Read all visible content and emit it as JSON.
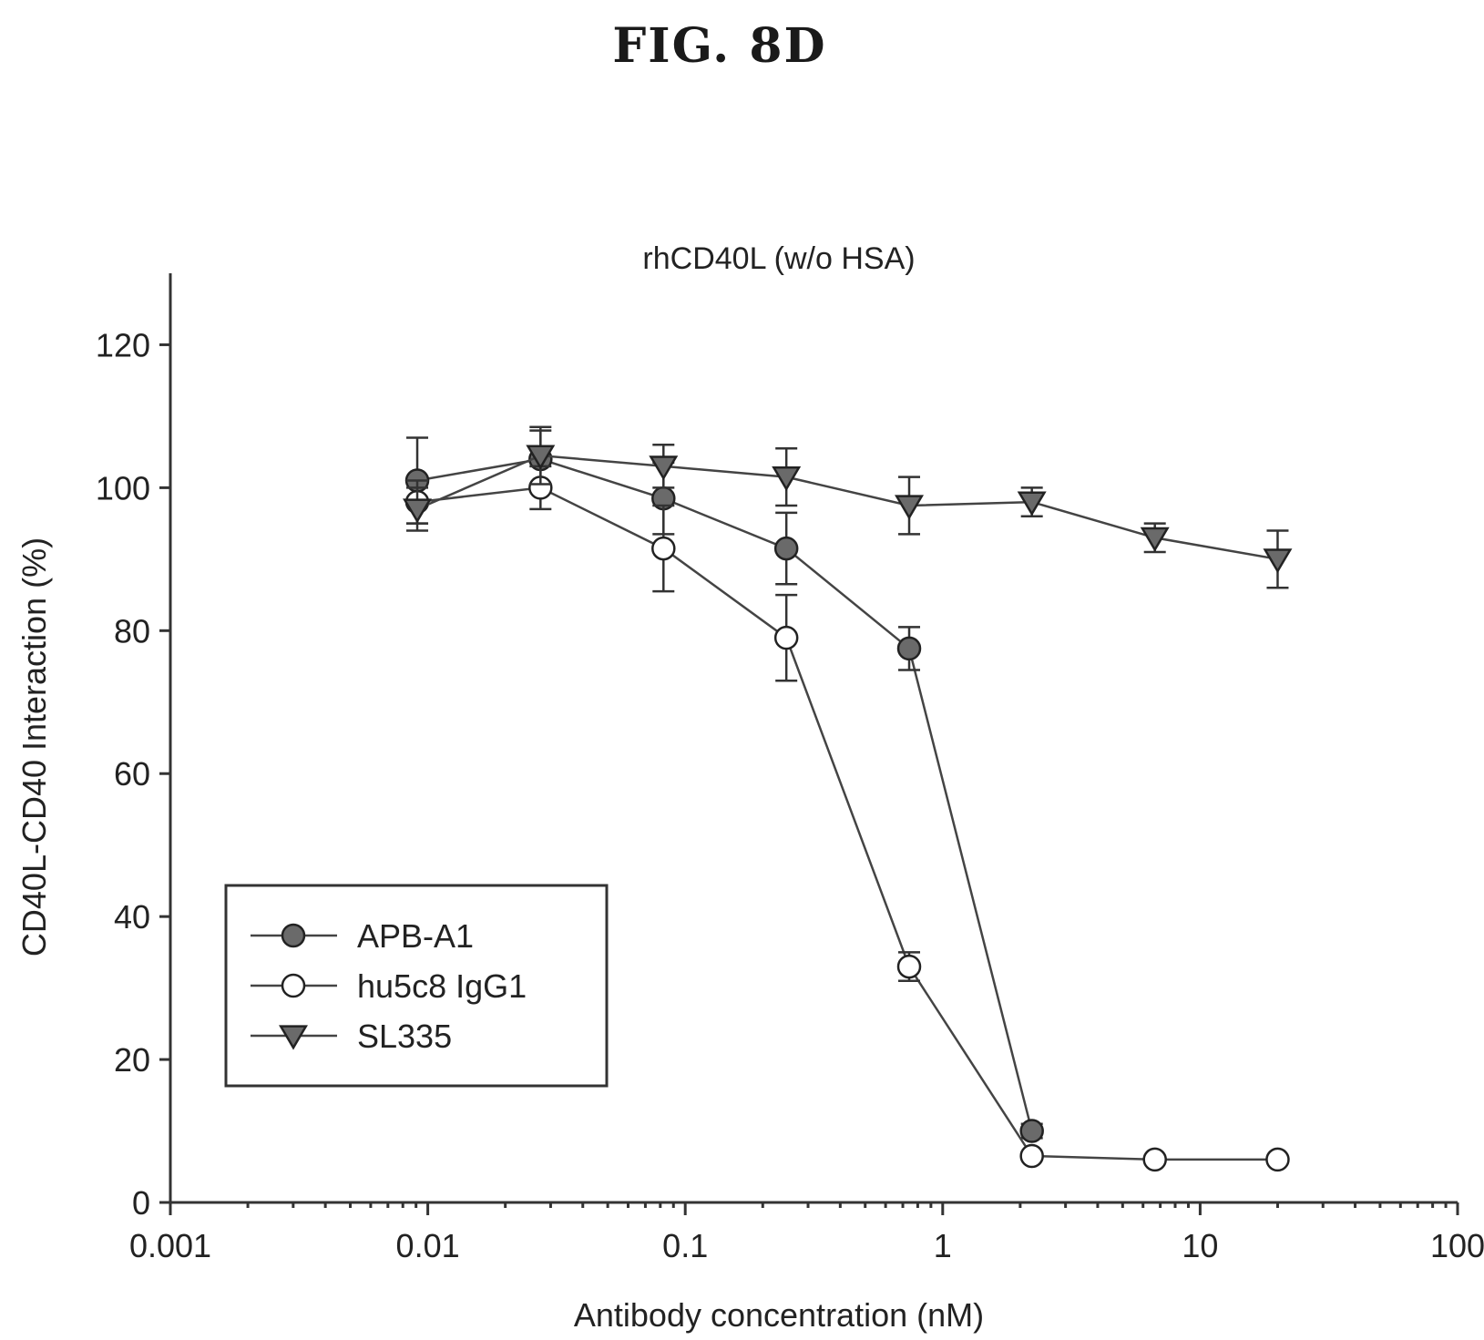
{
  "figure_label": "FIG.  8D",
  "chart_data": {
    "type": "scatter",
    "title": "rhCD40L (w/o HSA)",
    "xlabel": "Antibody concentration (nM)",
    "ylabel": "CD40L-CD40 Interaction (%)",
    "xscale": "log",
    "xlim": [
      0.001,
      100
    ],
    "ylim": [
      0,
      130
    ],
    "x_ticks": [
      0.001,
      0.01,
      0.1,
      1,
      10,
      100
    ],
    "x_tick_labels": [
      "0.001",
      "0.01",
      "0.1",
      "1",
      "10",
      "100"
    ],
    "y_ticks": [
      0,
      20,
      40,
      60,
      80,
      100,
      120
    ],
    "y_tick_labels": [
      "0",
      "20",
      "40",
      "60",
      "80",
      "100",
      "120"
    ],
    "grid": false,
    "legend_position": "lower-left",
    "series": [
      {
        "name": "APB-A1",
        "marker": "filled-circle",
        "color": "#555555",
        "x": [
          0.0091,
          0.0274,
          0.0823,
          0.247,
          0.741,
          2.22
        ],
        "y": [
          101,
          104,
          98.5,
          91.5,
          77.5,
          10
        ],
        "err": [
          6,
          4,
          5,
          5,
          3,
          1
        ]
      },
      {
        "name": "hu5c8 IgG1",
        "marker": "open-circle",
        "color": "#ffffff",
        "x": [
          0.0091,
          0.0274,
          0.0823,
          0.247,
          0.741,
          2.22,
          6.67,
          20
        ],
        "y": [
          98,
          100,
          91.5,
          79,
          33,
          6.5,
          6,
          6
        ],
        "err": [
          3,
          3,
          6,
          6,
          2,
          0.5,
          0.5,
          0.5
        ]
      },
      {
        "name": "SL335",
        "marker": "filled-triangle-down",
        "color": "#555555",
        "x": [
          0.0091,
          0.0274,
          0.0823,
          0.247,
          0.741,
          2.22,
          6.67,
          20
        ],
        "y": [
          97,
          104.5,
          103,
          101.5,
          97.5,
          98,
          93,
          90
        ],
        "err": [
          3,
          4,
          3,
          4,
          4,
          2,
          2,
          4
        ]
      }
    ]
  }
}
